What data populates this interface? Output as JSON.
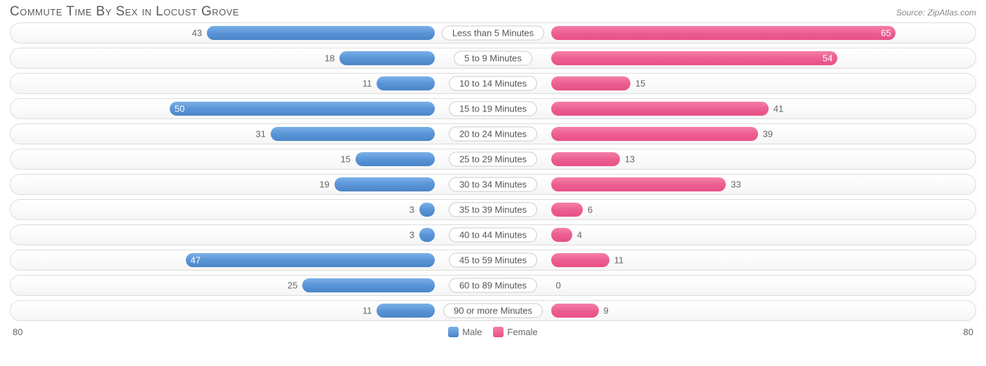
{
  "title": "Commute Time By Sex in Locust Grove",
  "source": "Source: ZipAtlas.com",
  "chart": {
    "type": "diverging-bar",
    "axis_max": 80,
    "axis_label_left": "80",
    "axis_label_right": "80",
    "male_color": "#5a95d8",
    "female_color": "#ec5f92",
    "track_border": "#dddddd",
    "track_bg": "#fafafa",
    "label_color": "#666666",
    "category_pill_border": "#cccccc",
    "rows": [
      {
        "category": "Less than 5 Minutes",
        "male": 43,
        "female": 65,
        "male_label_inside": false,
        "female_label_inside": true
      },
      {
        "category": "5 to 9 Minutes",
        "male": 18,
        "female": 54,
        "male_label_inside": false,
        "female_label_inside": true
      },
      {
        "category": "10 to 14 Minutes",
        "male": 11,
        "female": 15,
        "male_label_inside": false,
        "female_label_inside": false
      },
      {
        "category": "15 to 19 Minutes",
        "male": 50,
        "female": 41,
        "male_label_inside": true,
        "female_label_inside": false
      },
      {
        "category": "20 to 24 Minutes",
        "male": 31,
        "female": 39,
        "male_label_inside": false,
        "female_label_inside": false
      },
      {
        "category": "25 to 29 Minutes",
        "male": 15,
        "female": 13,
        "male_label_inside": false,
        "female_label_inside": false
      },
      {
        "category": "30 to 34 Minutes",
        "male": 19,
        "female": 33,
        "male_label_inside": false,
        "female_label_inside": false
      },
      {
        "category": "35 to 39 Minutes",
        "male": 3,
        "female": 6,
        "male_label_inside": false,
        "female_label_inside": false
      },
      {
        "category": "40 to 44 Minutes",
        "male": 3,
        "female": 4,
        "male_label_inside": false,
        "female_label_inside": false
      },
      {
        "category": "45 to 59 Minutes",
        "male": 47,
        "female": 11,
        "male_label_inside": true,
        "female_label_inside": false
      },
      {
        "category": "60 to 89 Minutes",
        "male": 25,
        "female": 0,
        "male_label_inside": false,
        "female_label_inside": false
      },
      {
        "category": "90 or more Minutes",
        "male": 11,
        "female": 9,
        "male_label_inside": false,
        "female_label_inside": false
      }
    ]
  },
  "legend": {
    "male": "Male",
    "female": "Female"
  }
}
